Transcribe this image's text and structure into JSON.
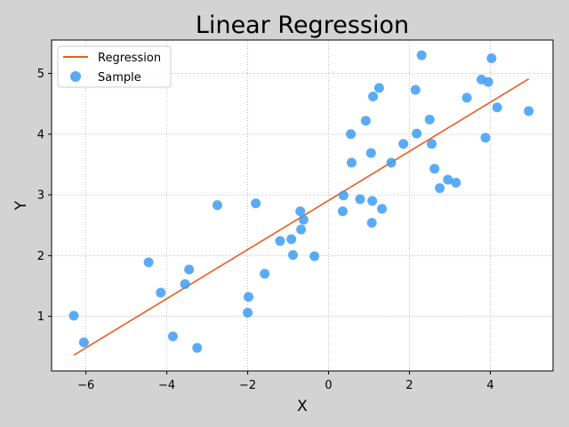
{
  "chart_data": {
    "type": "scatter",
    "title": "Linear Regression",
    "xlabel": "X",
    "ylabel": "Y",
    "xlim": [
      -6.85,
      5.55
    ],
    "ylim": [
      0.1,
      5.55
    ],
    "xticks": [
      -6,
      -4,
      -2,
      0,
      2,
      4
    ],
    "yticks": [
      1,
      2,
      3,
      4,
      5
    ],
    "grid": true,
    "grid_style": "dotted",
    "legend_position": "upper-left",
    "background": "#d3d3d3",
    "plot_background": "#ffffff",
    "series": [
      {
        "name": "Regression",
        "kind": "line",
        "color": "#f05a1e",
        "points": [
          [
            -6.3,
            0.36
          ],
          [
            4.95,
            4.91
          ]
        ]
      },
      {
        "name": "Sample",
        "kind": "scatter",
        "color": "#3d9cf5",
        "points": [
          [
            -6.3,
            1.01
          ],
          [
            -6.05,
            0.57
          ],
          [
            -4.45,
            1.89
          ],
          [
            -4.15,
            1.39
          ],
          [
            -3.85,
            0.67
          ],
          [
            -3.55,
            1.53
          ],
          [
            -3.45,
            1.77
          ],
          [
            -3.25,
            0.48
          ],
          [
            -2.75,
            2.83
          ],
          [
            -2.0,
            1.06
          ],
          [
            -1.98,
            1.32
          ],
          [
            -1.8,
            2.86
          ],
          [
            -1.58,
            1.7
          ],
          [
            -1.2,
            2.24
          ],
          [
            -0.92,
            2.27
          ],
          [
            -0.88,
            2.01
          ],
          [
            -0.7,
            2.73
          ],
          [
            -0.68,
            2.43
          ],
          [
            -0.62,
            2.59
          ],
          [
            -0.35,
            1.99
          ],
          [
            0.35,
            2.73
          ],
          [
            0.37,
            2.99
          ],
          [
            0.55,
            4.0
          ],
          [
            0.57,
            3.53
          ],
          [
            0.78,
            2.93
          ],
          [
            0.92,
            4.22
          ],
          [
            1.05,
            3.69
          ],
          [
            1.07,
            2.54
          ],
          [
            1.08,
            2.9
          ],
          [
            1.1,
            4.62
          ],
          [
            1.25,
            4.76
          ],
          [
            1.32,
            2.77
          ],
          [
            1.55,
            3.53
          ],
          [
            1.85,
            3.84
          ],
          [
            2.15,
            4.73
          ],
          [
            2.18,
            4.01
          ],
          [
            2.3,
            5.3
          ],
          [
            2.5,
            4.24
          ],
          [
            2.55,
            3.84
          ],
          [
            2.62,
            3.43
          ],
          [
            2.75,
            3.11
          ],
          [
            2.95,
            3.25
          ],
          [
            3.15,
            3.2
          ],
          [
            3.42,
            4.6
          ],
          [
            3.78,
            4.9
          ],
          [
            3.88,
            3.94
          ],
          [
            3.95,
            4.86
          ],
          [
            4.03,
            5.25
          ],
          [
            4.17,
            4.44
          ],
          [
            4.95,
            4.38
          ]
        ]
      }
    ]
  }
}
